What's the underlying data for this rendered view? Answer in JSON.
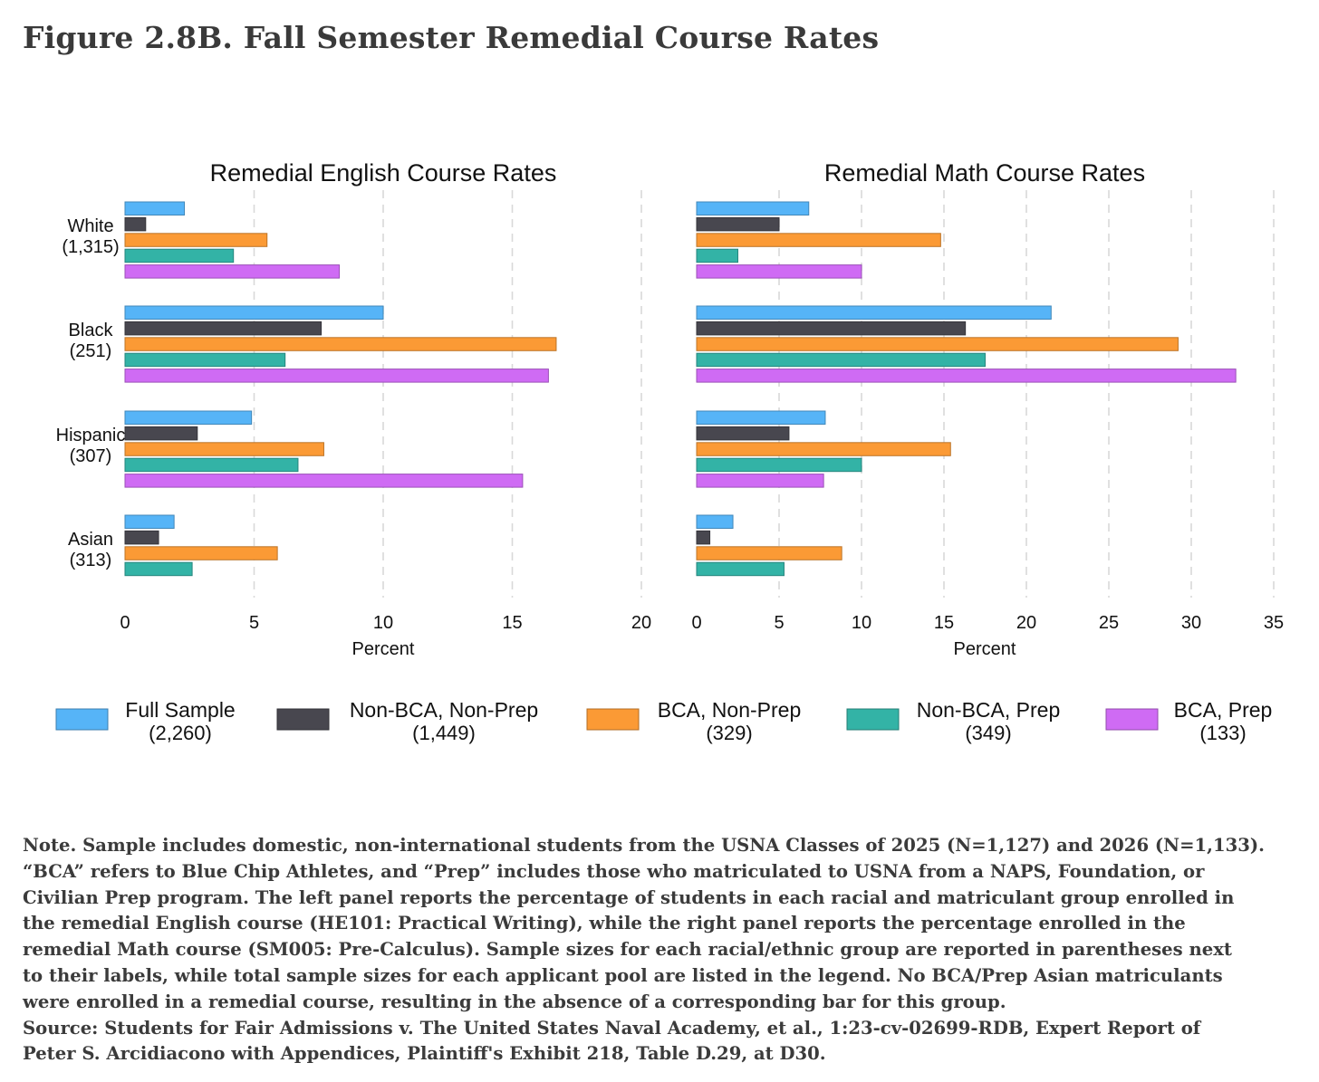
{
  "figure_title": "Figure 2.8B. Fall Semester Remedial Course Rates",
  "colors": {
    "Full Sample": "#56b4f7",
    "Non-BCA, Non-Prep": "#48474f",
    "BCA, Non-Prep": "#fb9a35",
    "Non-BCA, Prep": "#33b3a6",
    "BCA, Prep": "#cf6bf4",
    "grid": "#d9d9d9"
  },
  "chart_data": [
    {
      "type": "bar",
      "orientation": "horizontal",
      "title": "Remedial English Course Rates",
      "xlabel": "Percent",
      "xlim": [
        0,
        20
      ],
      "xticks": [
        "0",
        "5",
        "10",
        "15",
        "20"
      ],
      "categories": [
        [
          "White",
          "(1,315)"
        ],
        [
          "Black",
          "(251)"
        ],
        [
          "Hispanic",
          "(307)"
        ],
        [
          "Asian",
          "(313)"
        ]
      ],
      "series": [
        {
          "name": "Full Sample",
          "values": [
            2.3,
            10.0,
            4.9,
            1.9
          ]
        },
        {
          "name": "Non-BCA, Non-Prep",
          "values": [
            0.8,
            7.6,
            2.8,
            1.3
          ]
        },
        {
          "name": "BCA, Non-Prep",
          "values": [
            5.5,
            16.7,
            7.7,
            5.9
          ]
        },
        {
          "name": "Non-BCA, Prep",
          "values": [
            4.2,
            6.2,
            6.7,
            2.6
          ]
        },
        {
          "name": "BCA, Prep",
          "values": [
            8.3,
            16.4,
            15.4,
            null
          ]
        }
      ]
    },
    {
      "type": "bar",
      "orientation": "horizontal",
      "title": "Remedial Math Course Rates",
      "xlabel": "Percent",
      "xlim": [
        0,
        35
      ],
      "xticks": [
        "0",
        "5",
        "10",
        "15",
        "20",
        "25",
        "30",
        "35"
      ],
      "categories": [
        [
          "White",
          "(1,315)"
        ],
        [
          "Black",
          "(251)"
        ],
        [
          "Hispanic",
          "(307)"
        ],
        [
          "Asian",
          "(313)"
        ]
      ],
      "series": [
        {
          "name": "Full Sample",
          "values": [
            6.8,
            21.5,
            7.8,
            2.2
          ]
        },
        {
          "name": "Non-BCA, Non-Prep",
          "values": [
            5.0,
            16.3,
            5.6,
            0.8
          ]
        },
        {
          "name": "BCA, Non-Prep",
          "values": [
            14.8,
            29.2,
            15.4,
            8.8
          ]
        },
        {
          "name": "Non-BCA, Prep",
          "values": [
            2.5,
            17.5,
            10.0,
            5.3
          ]
        },
        {
          "name": "BCA, Prep",
          "values": [
            10.0,
            32.7,
            7.7,
            null
          ]
        }
      ]
    }
  ],
  "legend": [
    {
      "name": "Full Sample",
      "label": "Full Sample",
      "n": "(2,260)"
    },
    {
      "name": "Non-BCA, Non-Prep",
      "label": "Non-BCA, Non-Prep",
      "n": "(1,449)"
    },
    {
      "name": "BCA, Non-Prep",
      "label": "BCA, Non-Prep",
      "n": "(329)"
    },
    {
      "name": "Non-BCA, Prep",
      "label": "Non-BCA, Prep",
      "n": "(349)"
    },
    {
      "name": "BCA, Prep",
      "label": "BCA, Prep",
      "n": "(133)"
    }
  ],
  "note_lines": [
    "Note. Sample includes domestic, non-international students from the USNA Classes of 2025 (N=1,127) and 2026 (N=1,133).",
    "“BCA” refers to Blue Chip Athletes, and “Prep” includes those who matriculated to USNA from a NAPS, Foundation, or",
    "Civilian Prep program. The left panel reports the percentage of students in each racial and matriculant group enrolled in",
    "the remedial English course (HE101: Practical Writing), while the right panel reports the percentage enrolled in the",
    "remedial Math course (SM005: Pre-Calculus). Sample sizes for each racial/ethnic group are reported in parentheses next",
    "to their labels, while total sample sizes for each applicant pool are listed in the legend. No BCA/Prep Asian matriculants",
    "were enrolled in a remedial course, resulting in the absence of a corresponding bar for this group.",
    "Source: Students for Fair Admissions v. The United States Naval Academy, et al., 1:23-cv-02699-RDB, Expert Report of",
    "Peter S. Arcidiacono with Appendices, Plaintiff's Exhibit 218, Table D.29, at D30."
  ]
}
